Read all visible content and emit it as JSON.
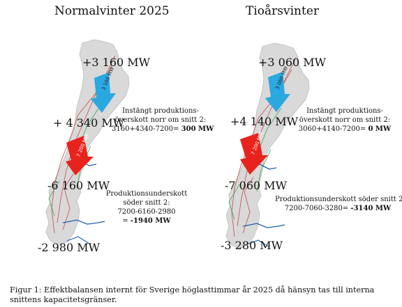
{
  "maps": [
    {
      "title": "Normalvinter 2025",
      "north_label": "+3 160 MW",
      "mid_label": "+ 4 340 MW",
      "south_label": "-6 160 MW",
      "far_south_label": "-2 980 MW",
      "blue_arrow_text": "3 160 MW",
      "red_arrow_text": "7 200 MW",
      "north_note": {
        "line1": "Instängt produktions-",
        "line2": "överskott norr om snitt 2:",
        "formula": "3160+4340-7200= ",
        "result": "300 MW"
      },
      "south_note": {
        "line1": "Produktionsunderskott",
        "line2": "söder snitt 2:",
        "formula": "7200-6160-2980",
        "result_prefix": "= ",
        "result": "-1940 MW"
      }
    },
    {
      "title": "Tioårsvinter",
      "north_label": "+3 060 MW",
      "mid_label": "+4 140 MW",
      "south_label": "-7 060 MW",
      "far_south_label": "-3 280 MW",
      "blue_arrow_text": "3 060 MW",
      "red_arrow_text": "7 200 MW",
      "north_note": {
        "line1": "Instängt produktions-",
        "line2": "överskott norr om snitt 2:",
        "formula": "3060+4140-7200= ",
        "result": "0 MW"
      },
      "south_note": {
        "line1": "Produktionsunderskott söder snitt 2:",
        "formula": "7200-7060-3280= ",
        "result": "-3140 MW"
      }
    }
  ],
  "caption": "Figur 1: Effektbalansen internt för Sverige höglasttimmar år 2025 då hänsyn tas till interna snittens kapacitetsgränser.",
  "colors": {
    "land": "#d9d9d9",
    "blue_arrow": "#2aa8e0",
    "red_arrow": "#e8231d",
    "grid_red": "#c84a4a",
    "grid_green": "#3aa655",
    "grid_blue": "#1f5fa8"
  }
}
